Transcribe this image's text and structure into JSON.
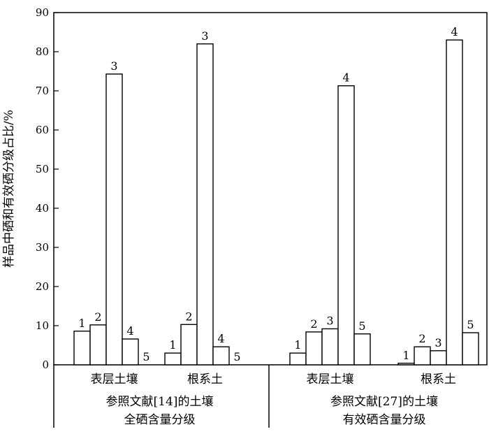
{
  "chart_data": {
    "type": "bar",
    "ylabel": "样品中硒和有效硒分级占比/%",
    "ylim": [
      0,
      90
    ],
    "yticks": [
      0,
      10,
      20,
      30,
      40,
      50,
      60,
      70,
      80,
      90
    ],
    "groups": [
      {
        "label_line1": "参照文献[14]的土壤",
        "label_line2": "全硒含量分级",
        "categories": [
          {
            "name": "表层土壤",
            "bars": [
              {
                "label": "1",
                "value": 8.6
              },
              {
                "label": "2",
                "value": 10.2
              },
              {
                "label": "3",
                "value": 74.3
              },
              {
                "label": "4",
                "value": 6.6
              },
              {
                "label": "5",
                "value": 0
              }
            ]
          },
          {
            "name": "根系土",
            "bars": [
              {
                "label": "1",
                "value": 3.0
              },
              {
                "label": "2",
                "value": 10.3
              },
              {
                "label": "3",
                "value": 82.0
              },
              {
                "label": "4",
                "value": 4.6
              },
              {
                "label": "5",
                "value": 0
              }
            ]
          }
        ]
      },
      {
        "label_line1": "参照文献[27]的土壤",
        "label_line2": "有效硒含量分级",
        "categories": [
          {
            "name": "表层土壤",
            "bars": [
              {
                "label": "1",
                "value": 3.0
              },
              {
                "label": "2",
                "value": 8.4
              },
              {
                "label": "3",
                "value": 9.2
              },
              {
                "label": "4",
                "value": 71.3
              },
              {
                "label": "5",
                "value": 7.9
              }
            ]
          },
          {
            "name": "根系土",
            "bars": [
              {
                "label": "1",
                "value": 0.4
              },
              {
                "label": "2",
                "value": 4.6
              },
              {
                "label": "3",
                "value": 3.6
              },
              {
                "label": "4",
                "value": 83.0
              },
              {
                "label": "5",
                "value": 8.2
              }
            ]
          }
        ]
      }
    ]
  }
}
